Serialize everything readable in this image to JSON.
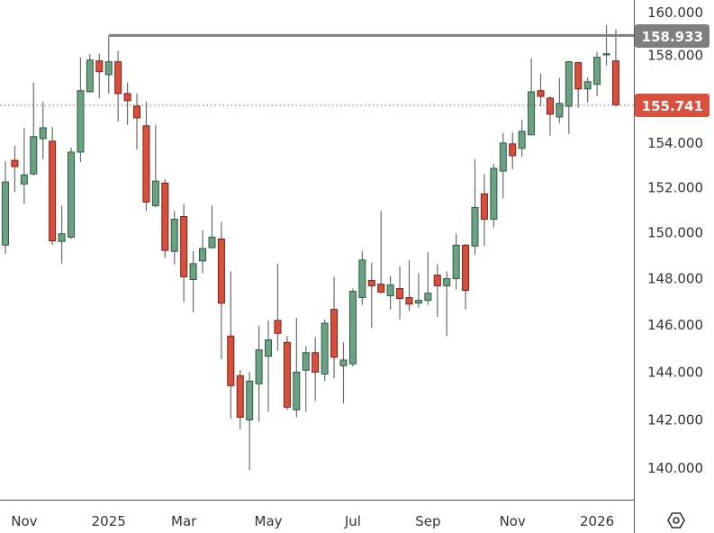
{
  "chart_data": {
    "type": "candlestick",
    "title": "",
    "xlabel": "",
    "ylabel": "",
    "y_scale": "log",
    "ylim": [
      139.0,
      160.6
    ],
    "grid": false,
    "candle_fields": [
      "open",
      "high",
      "low",
      "close"
    ],
    "candles": [
      [
        149.46,
        153.18,
        149.08,
        152.25
      ],
      [
        153.22,
        153.88,
        151.8,
        152.94
      ],
      [
        152.16,
        154.69,
        151.28,
        152.57
      ],
      [
        152.61,
        156.75,
        152.55,
        154.29
      ],
      [
        154.2,
        155.88,
        153.27,
        154.69
      ],
      [
        154.08,
        154.73,
        149.46,
        149.65
      ],
      [
        149.62,
        151.2,
        148.65,
        149.96
      ],
      [
        149.81,
        153.8,
        149.73,
        153.59
      ],
      [
        153.59,
        157.92,
        153.14,
        156.38
      ],
      [
        156.33,
        158.08,
        156.3,
        157.79
      ],
      [
        157.75,
        158.08,
        156.04,
        157.25
      ],
      [
        157.12,
        158.92,
        156.25,
        157.71
      ],
      [
        157.71,
        158.21,
        154.98,
        156.25
      ],
      [
        156.25,
        156.75,
        154.82,
        155.92
      ],
      [
        155.67,
        156.25,
        153.71,
        155.14
      ],
      [
        154.78,
        155.88,
        150.96,
        151.36
      ],
      [
        151.2,
        154.82,
        151.12,
        152.29
      ],
      [
        152.2,
        152.37,
        148.92,
        149.23
      ],
      [
        149.19,
        150.96,
        148.62,
        150.6
      ],
      [
        150.72,
        151.28,
        146.98,
        148.08
      ],
      [
        147.96,
        149.19,
        146.55,
        148.65
      ],
      [
        148.77,
        150.12,
        148.23,
        149.31
      ],
      [
        149.35,
        151.2,
        149.31,
        149.81
      ],
      [
        149.73,
        150.48,
        144.55,
        146.94
      ],
      [
        145.53,
        148.31,
        142.04,
        143.43
      ],
      [
        143.85,
        144.08,
        141.6,
        142.11
      ],
      [
        142.0,
        144.0,
        139.93,
        143.62
      ],
      [
        143.51,
        145.96,
        141.93,
        144.94
      ],
      [
        144.67,
        146.2,
        142.34,
        145.37
      ],
      [
        146.2,
        148.65,
        144.9,
        145.65
      ],
      [
        145.26,
        145.53,
        142.42,
        142.53
      ],
      [
        142.42,
        146.31,
        142.11,
        144.0
      ],
      [
        144.08,
        145.1,
        142.34,
        144.82
      ],
      [
        144.82,
        145.49,
        142.79,
        144.0
      ],
      [
        143.92,
        146.24,
        143.62,
        146.08
      ],
      [
        146.67,
        148.08,
        143.74,
        144.63
      ],
      [
        144.27,
        145.26,
        142.68,
        144.51
      ],
      [
        144.35,
        147.57,
        144.24,
        147.45
      ],
      [
        147.18,
        149.19,
        146.86,
        148.81
      ],
      [
        147.92,
        148.69,
        145.88,
        147.69
      ],
      [
        147.76,
        150.96,
        147.37,
        147.41
      ],
      [
        147.26,
        148.12,
        146.67,
        147.73
      ],
      [
        147.57,
        148.54,
        146.24,
        147.14
      ],
      [
        147.18,
        148.81,
        146.59,
        146.9
      ],
      [
        146.94,
        148.23,
        146.75,
        147.06
      ],
      [
        147.06,
        149.15,
        146.86,
        147.37
      ],
      [
        148.15,
        148.62,
        146.35,
        147.69
      ],
      [
        147.69,
        148.31,
        145.53,
        148.0
      ],
      [
        148.0,
        149.96,
        147.53,
        149.46
      ],
      [
        149.46,
        149.5,
        146.67,
        147.49
      ],
      [
        149.42,
        153.27,
        149.04,
        151.12
      ],
      [
        151.72,
        152.61,
        149.42,
        150.6
      ],
      [
        150.6,
        153.06,
        150.24,
        152.86
      ],
      [
        152.74,
        154.45,
        151.52,
        154.0
      ],
      [
        153.96,
        154.49,
        152.82,
        153.43
      ],
      [
        153.76,
        155.06,
        153.39,
        154.53
      ],
      [
        154.37,
        157.87,
        154.37,
        156.33
      ],
      [
        156.38,
        157.17,
        155.67,
        156.12
      ],
      [
        156.04,
        156.12,
        154.33,
        155.31
      ],
      [
        155.18,
        156.96,
        154.9,
        155.8
      ],
      [
        155.67,
        157.75,
        154.41,
        157.71
      ],
      [
        157.67,
        157.71,
        155.59,
        156.46
      ],
      [
        156.46,
        157.0,
        155.84,
        156.79
      ],
      [
        156.67,
        158.17,
        156.12,
        157.92
      ],
      [
        158.08,
        159.42,
        157.54,
        158.08
      ],
      [
        157.75,
        159.21,
        155.67,
        155.74
      ]
    ],
    "y_ticks": [
      "160.000",
      "158.000",
      "154.000",
      "152.000",
      "150.000",
      "148.000",
      "146.000",
      "144.000",
      "142.000",
      "140.000"
    ],
    "x_ticks": [
      "Nov",
      "2025",
      "Mar",
      "May",
      "Jul",
      "Sep",
      "Nov",
      "2026"
    ],
    "horizontal_line": {
      "value": 158.933,
      "label": "158.933",
      "color": "#7f7f7f"
    },
    "last_price": {
      "value": 155.741,
      "label": "155.741",
      "color": "#d9503f"
    },
    "colors": {
      "up_fill": "#6aa283",
      "up_border": "#2e5a40",
      "down_fill": "#d6503e",
      "down_border": "#7d1c14",
      "axis_text": "#333333"
    }
  },
  "settings_icon": "hexagon-settings-icon"
}
